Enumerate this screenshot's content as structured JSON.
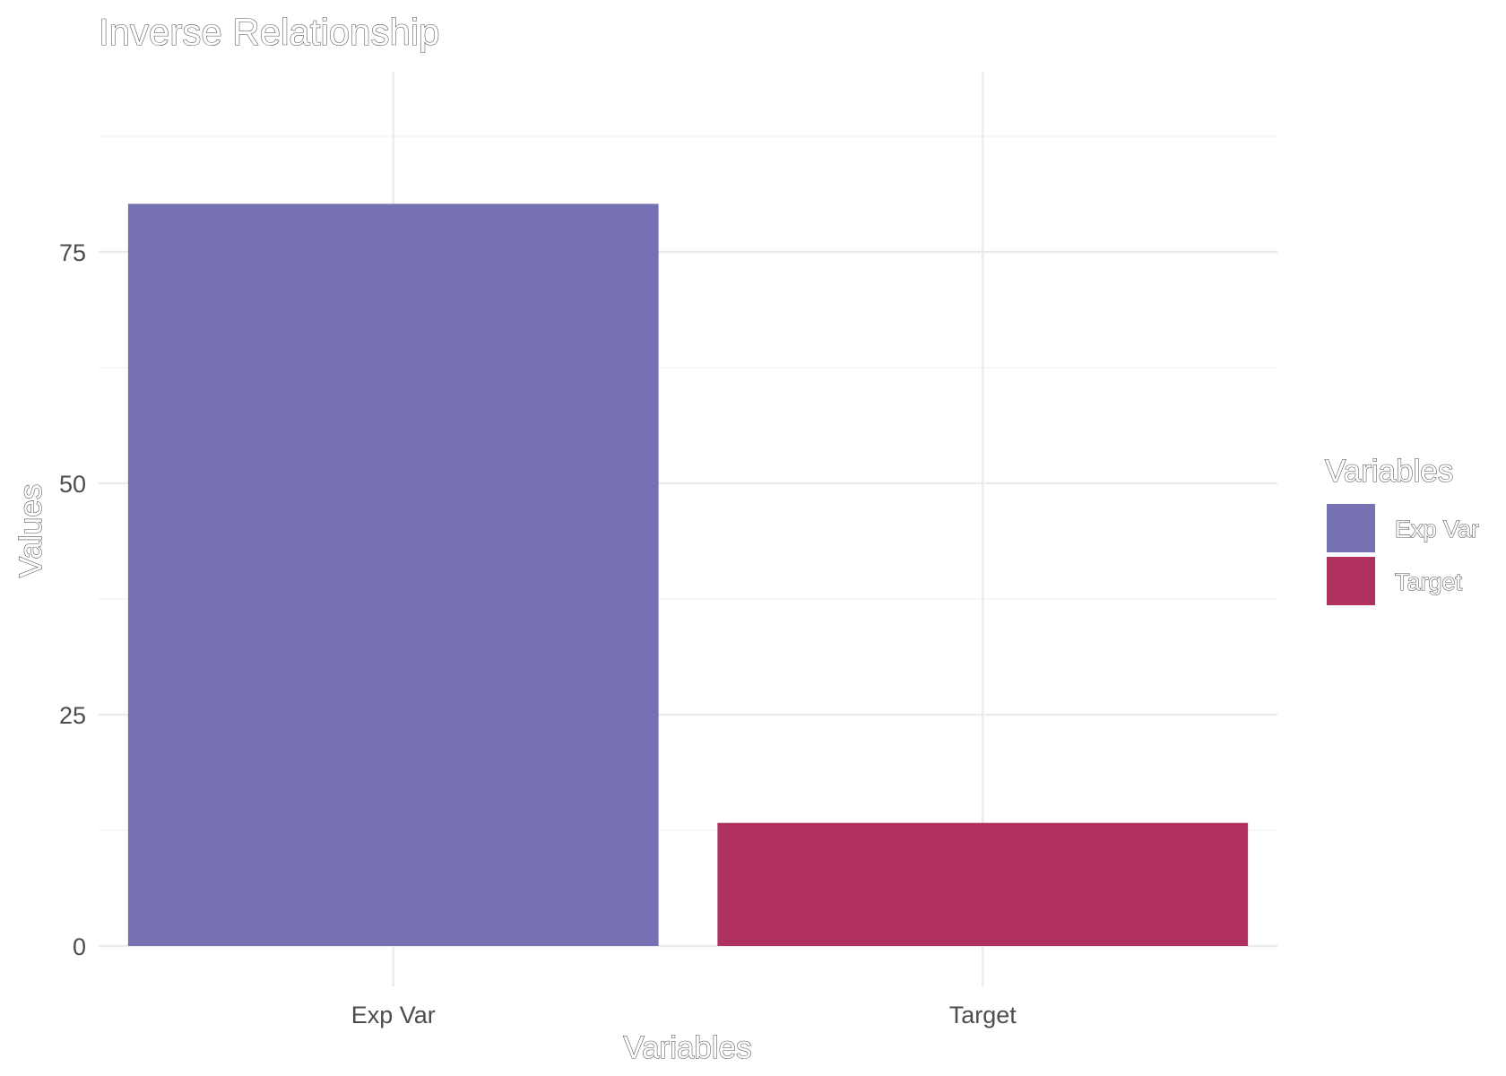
{
  "chart_data": {
    "type": "bar",
    "title": "Inverse Relationship",
    "xlabel": "Variables",
    "ylabel": "Values",
    "categories": [
      "Exp Var",
      "Target"
    ],
    "values": [
      80.2,
      13.3
    ],
    "colors": [
      "#7671b2",
      "#b0305f"
    ],
    "ylim": [
      0,
      88
    ],
    "yticks": [
      0,
      25,
      50,
      75
    ],
    "grid": true,
    "legend": {
      "title": "Variables",
      "position": "right",
      "items": [
        {
          "label": "Exp Var",
          "color": "#7671b2"
        },
        {
          "label": "Target",
          "color": "#b0305f"
        }
      ]
    }
  }
}
